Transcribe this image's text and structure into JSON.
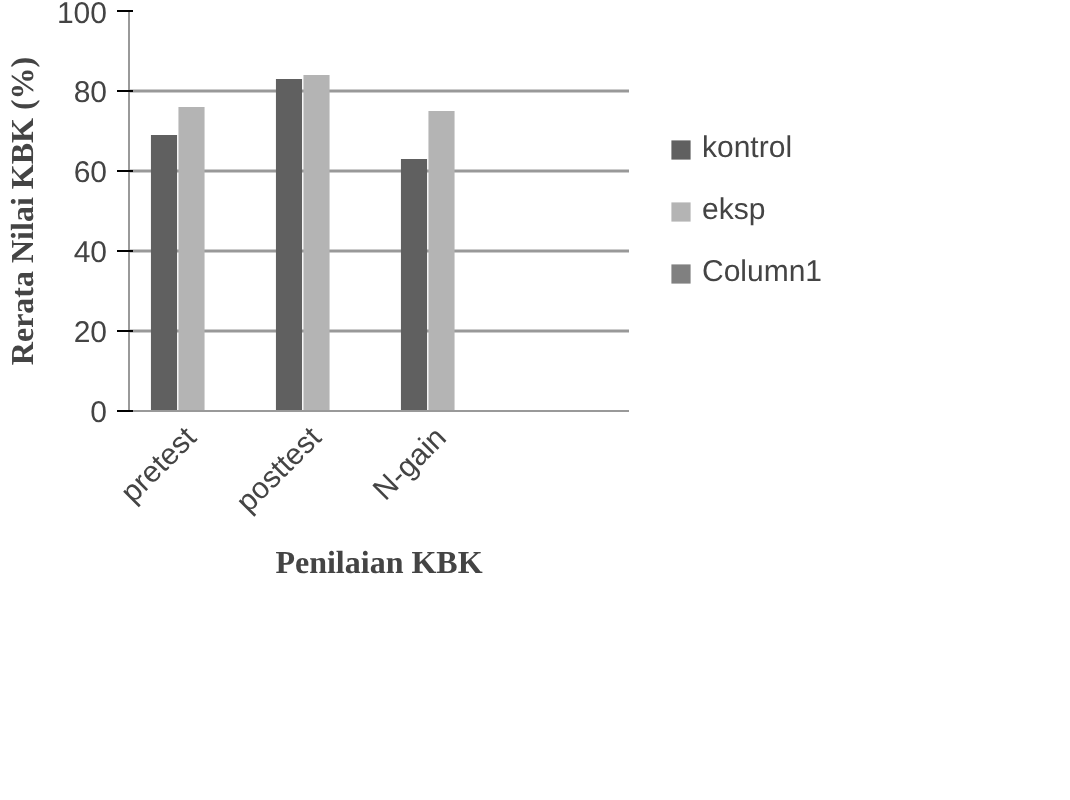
{
  "chart_data": {
    "type": "bar",
    "xlabel": "Penilaian KBK",
    "ylabel": "Rerata Nilai KBK (%)",
    "categories": [
      "pretest",
      "posttest",
      "N-gain",
      null
    ],
    "series": [
      {
        "name": "kontrol",
        "color": "#606060",
        "values": [
          69,
          83,
          63,
          null
        ]
      },
      {
        "name": "eksp",
        "color": "#b4b4b4",
        "values": [
          76,
          84,
          75,
          null
        ]
      },
      {
        "name": "Column1",
        "color": "#808080",
        "values": [
          null,
          null,
          null,
          null
        ]
      }
    ],
    "ylim": [
      0,
      100
    ],
    "yticks": [
      0,
      20,
      40,
      60,
      80,
      100
    ],
    "grid": "y",
    "legend": "right"
  }
}
